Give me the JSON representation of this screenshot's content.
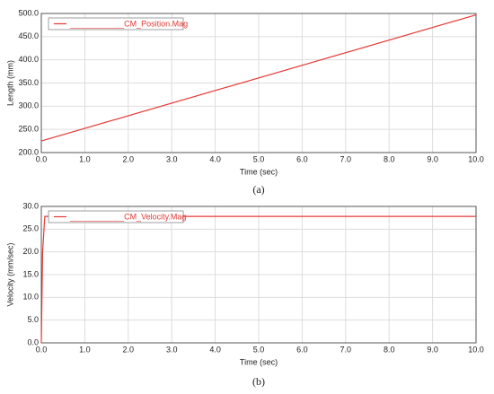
{
  "chart_data": [
    {
      "type": "line",
      "caption": "(a)",
      "xlabel": "Time (sec)",
      "ylabel": "Length (mm)",
      "x": [
        0,
        10
      ],
      "series": [
        {
          "name": "____________CM_Position.Mag",
          "color": "#e53935",
          "values": [
            225,
            497
          ]
        }
      ],
      "xlim": [
        0,
        10
      ],
      "ylim": [
        200,
        500
      ],
      "xticks": [
        {
          "value": 0,
          "label": "0.0"
        },
        {
          "value": 1,
          "label": "1.0"
        },
        {
          "value": 2,
          "label": "2.0"
        },
        {
          "value": 3,
          "label": "3.0"
        },
        {
          "value": 4,
          "label": "4.0"
        },
        {
          "value": 5,
          "label": "5.0"
        },
        {
          "value": 6,
          "label": "6.0"
        },
        {
          "value": 7,
          "label": "7.0"
        },
        {
          "value": 8,
          "label": "8.0"
        },
        {
          "value": 9,
          "label": "9.0"
        },
        {
          "value": 10,
          "label": "10.0"
        }
      ],
      "yticks": [
        {
          "value": 200,
          "label": "200.0"
        },
        {
          "value": 250,
          "label": "250.0"
        },
        {
          "value": 300,
          "label": "300.0"
        },
        {
          "value": 350,
          "label": "350.0"
        },
        {
          "value": 400,
          "label": "400.0"
        },
        {
          "value": 450,
          "label": "450.0"
        },
        {
          "value": 500,
          "label": "500.0"
        }
      ],
      "grid": true,
      "legend": "upper left"
    },
    {
      "type": "line",
      "caption": "(b)",
      "xlabel": "Time (sec)",
      "ylabel": "Velocity (mm/sec)",
      "x": [
        0,
        0.03,
        0.08,
        10
      ],
      "series": [
        {
          "name": "____________CM_Velocity.Mag",
          "color": "#e53935",
          "values": [
            0,
            20,
            27.8,
            27.8
          ]
        }
      ],
      "xlim": [
        0,
        10
      ],
      "ylim": [
        0,
        30
      ],
      "xticks": [
        {
          "value": 0,
          "label": "0.0"
        },
        {
          "value": 1,
          "label": "1.0"
        },
        {
          "value": 2,
          "label": "2.0"
        },
        {
          "value": 3,
          "label": "3.0"
        },
        {
          "value": 4,
          "label": "4.0"
        },
        {
          "value": 5,
          "label": "5.0"
        },
        {
          "value": 6,
          "label": "6.0"
        },
        {
          "value": 7,
          "label": "7.0"
        },
        {
          "value": 8,
          "label": "8.0"
        },
        {
          "value": 9,
          "label": "9.0"
        },
        {
          "value": 10,
          "label": "10.0"
        }
      ],
      "yticks": [
        {
          "value": 0,
          "label": "0.0"
        },
        {
          "value": 5,
          "label": "5.0"
        },
        {
          "value": 10,
          "label": "10.0"
        },
        {
          "value": 15,
          "label": "15.0"
        },
        {
          "value": 20,
          "label": "20.0"
        },
        {
          "value": 25,
          "label": "25.0"
        },
        {
          "value": 30,
          "label": "30.0"
        }
      ],
      "grid": true,
      "legend": "upper left"
    }
  ]
}
